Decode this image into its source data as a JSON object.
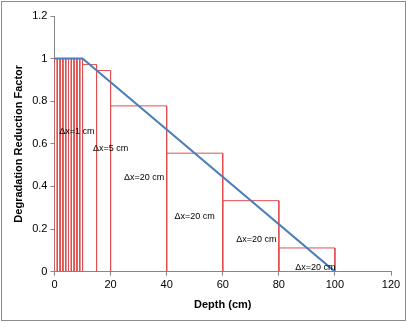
{
  "chart_data": {
    "type": "line",
    "x_label": "Depth (cm)",
    "y_label": "Degradation Reduction Factor",
    "xlim": [
      0,
      120
    ],
    "xticks": [
      0,
      20,
      40,
      60,
      80,
      100,
      120
    ],
    "ylim": [
      0,
      1.2
    ],
    "yticks": [
      0,
      0.2,
      0.4,
      0.6,
      0.8,
      1,
      1.2
    ],
    "grid": false,
    "series": [
      {
        "color": "#4a7ebb",
        "line_style": "solid",
        "x": [
          0,
          10,
          100
        ],
        "values": [
          1,
          1,
          0
        ]
      }
    ],
    "cells": {
      "color": "#e05050",
      "items": [
        {
          "x": [
            0,
            1
          ],
          "value": 1
        },
        {
          "x": [
            1,
            2
          ],
          "value": 1
        },
        {
          "x": [
            2,
            3
          ],
          "value": 1
        },
        {
          "x": [
            3,
            4
          ],
          "value": 1
        },
        {
          "x": [
            4,
            5
          ],
          "value": 1
        },
        {
          "x": [
            5,
            6
          ],
          "value": 1
        },
        {
          "x": [
            6,
            7
          ],
          "value": 1
        },
        {
          "x": [
            7,
            8
          ],
          "value": 1
        },
        {
          "x": [
            8,
            9
          ],
          "value": 1
        },
        {
          "x": [
            9,
            10
          ],
          "value": 1
        },
        {
          "x": [
            10,
            15
          ],
          "value": 0.972
        },
        {
          "x": [
            15,
            20
          ],
          "value": 0.944
        },
        {
          "x": [
            20,
            40
          ],
          "value": 0.778
        },
        {
          "x": [
            40,
            60
          ],
          "value": 0.556
        },
        {
          "x": [
            60,
            80
          ],
          "value": 0.333
        },
        {
          "x": [
            80,
            100
          ],
          "value": 0.111
        }
      ]
    },
    "annotations": [
      {
        "text": "Δx=1 cm",
        "x": 8,
        "y": 0.66
      },
      {
        "text": "Δx=5 cm",
        "x": 20,
        "y": 0.58
      },
      {
        "text": "Δx=20 cm",
        "x": 32,
        "y": 0.44
      },
      {
        "text": "Δx=20 cm",
        "x": 50,
        "y": 0.26
      },
      {
        "text": "Δx=20 cm",
        "x": 72,
        "y": 0.15
      },
      {
        "text": "Δx=20 cm",
        "x": 93,
        "y": 0.02
      }
    ]
  }
}
